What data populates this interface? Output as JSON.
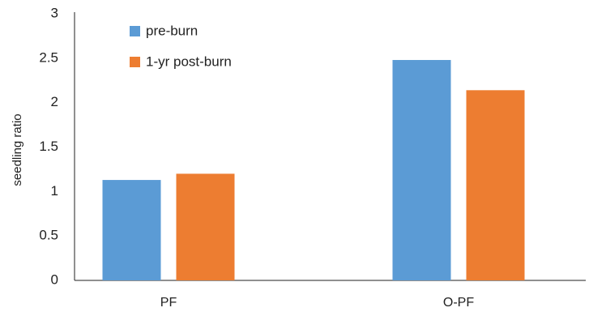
{
  "chart_data": {
    "type": "bar",
    "title": "",
    "xlabel": "",
    "ylabel": "seedling ratio",
    "categories": [
      "PF",
      "O-PF"
    ],
    "series": [
      {
        "name": "pre-burn",
        "values": [
          1.13,
          2.48
        ],
        "color": "#5B9BD5"
      },
      {
        "name": "1-yr post-burn",
        "values": [
          1.2,
          2.14
        ],
        "color": "#ED7D31"
      }
    ],
    "ylim": [
      0,
      3
    ],
    "yticks": [
      "0",
      "0.5",
      "1",
      "1.5",
      "2",
      "2.5",
      "3"
    ],
    "grid": false,
    "legend_position": "top-left"
  }
}
